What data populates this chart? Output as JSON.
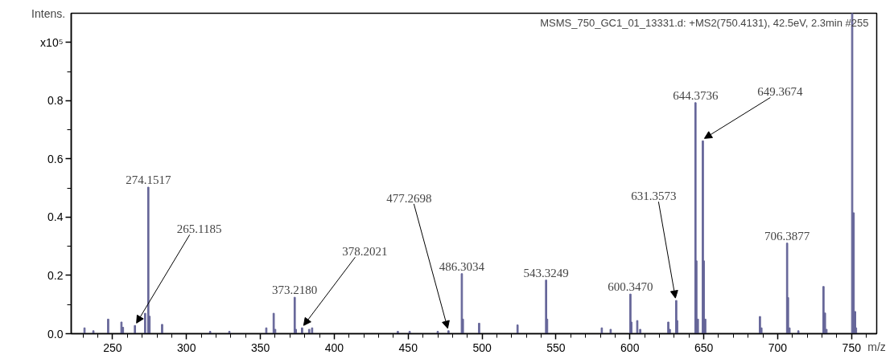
{
  "chart_data": {
    "type": "bar",
    "xlabel": "m/z",
    "ylabel": "Intens.",
    "color": "#666699",
    "x": [
      231,
      237,
      247,
      256,
      257,
      265.1185,
      272,
      274.1517,
      275,
      283.5,
      316,
      329,
      354,
      359,
      360,
      373.218,
      374,
      378.2021,
      383,
      385,
      443,
      451,
      470,
      477.2698,
      486.3034,
      487,
      498,
      524,
      543.3249,
      544,
      581,
      587,
      600.347,
      601,
      605,
      607,
      626,
      627,
      631.3573,
      632,
      644.3736,
      645,
      646,
      649.3674,
      650,
      651,
      688,
      689,
      706.3877,
      707,
      708,
      714,
      731,
      732,
      733,
      750.4131,
      751.4,
      752.4,
      753
    ],
    "values": [
      0.02,
      0.01,
      0.05,
      0.04,
      0.022,
      0.028,
      0.07,
      0.503,
      0.06,
      0.032,
      0.008,
      0.008,
      0.02,
      0.07,
      0.015,
      0.125,
      0.015,
      0.02,
      0.015,
      0.02,
      0.008,
      0.008,
      0.008,
      0.01,
      0.206,
      0.05,
      0.036,
      0.03,
      0.184,
      0.05,
      0.02,
      0.015,
      0.136,
      0.04,
      0.045,
      0.015,
      0.04,
      0.015,
      0.114,
      0.045,
      0.793,
      0.25,
      0.05,
      0.662,
      0.25,
      0.05,
      0.059,
      0.02,
      0.311,
      0.124,
      0.02,
      0.01,
      0.162,
      0.071,
      0.015,
      1.1,
      0.415,
      0.076,
      0.02
    ],
    "xlim": [
      222,
      767
    ],
    "ylim": [
      0,
      1.1
    ],
    "xticks": [
      250,
      300,
      350,
      400,
      450,
      500,
      550,
      600,
      650,
      700,
      750,
      {
        "value": 230,
        "label": null
      },
      {
        "value": 240,
        "label": null
      },
      {
        "value": 260,
        "label": null
      },
      {
        "value": 270,
        "label": null
      },
      {
        "value": 280,
        "label": null
      },
      {
        "value": 290,
        "label": null
      },
      {
        "value": 310,
        "label": null
      },
      {
        "value": 320,
        "label": null
      },
      {
        "value": 330,
        "label": null
      },
      {
        "value": 340,
        "label": null
      },
      {
        "value": 360,
        "label": null
      },
      {
        "value": 370,
        "label": null
      },
      {
        "value": 380,
        "label": null
      },
      {
        "value": 390,
        "label": null
      },
      {
        "value": 410,
        "label": null
      },
      {
        "value": 420,
        "label": null
      },
      {
        "value": 430,
        "label": null
      },
      {
        "value": 440,
        "label": null
      },
      {
        "value": 460,
        "label": null
      },
      {
        "value": 470,
        "label": null
      },
      {
        "value": 480,
        "label": null
      },
      {
        "value": 490,
        "label": null
      },
      {
        "value": 510,
        "label": null
      },
      {
        "value": 520,
        "label": null
      },
      {
        "value": 530,
        "label": null
      },
      {
        "value": 540,
        "label": null
      },
      {
        "value": 560,
        "label": null
      },
      {
        "value": 570,
        "label": null
      },
      {
        "value": 580,
        "label": null
      },
      {
        "value": 590,
        "label": null
      },
      {
        "value": 610,
        "label": null
      },
      {
        "value": 620,
        "label": null
      },
      {
        "value": 630,
        "label": null
      },
      {
        "value": 640,
        "label": null
      },
      {
        "value": 660,
        "label": null
      },
      {
        "value": 670,
        "label": null
      },
      {
        "value": 680,
        "label": null
      },
      {
        "value": 690,
        "label": null
      },
      {
        "value": 710,
        "label": null
      },
      {
        "value": 720,
        "label": null
      },
      {
        "value": 730,
        "label": null
      },
      {
        "value": 740,
        "label": null
      },
      {
        "value": 760,
        "label": null
      }
    ],
    "yticks": [
      {
        "value": 0,
        "label": "0.0"
      },
      0.2,
      0.4,
      0.6,
      0.8,
      {
        "value": 1.0,
        "label": "x10⁵"
      },
      {
        "value": 0.1,
        "label": null
      },
      {
        "value": 0.3,
        "label": null
      },
      {
        "value": 0.5,
        "label": null
      },
      {
        "value": 0.7,
        "label": null
      },
      {
        "value": 0.9,
        "label": null
      }
    ],
    "grid": false,
    "annotations": [
      "MSMS_750_GC1_01_13331.d: +MS2(750.4131), 42.5eV, 2.3min #255",
      {
        "text": "265.1185",
        "x": 265.1185,
        "y": 0.028
      },
      {
        "text": "274.1517",
        "x": 274.1517,
        "y": 0.503
      },
      {
        "text": "373.2180",
        "x": 373.218,
        "y": 0.125
      },
      {
        "text": "378.2021",
        "x": 378.2021,
        "y": 0.02
      },
      {
        "text": "477.2698",
        "x": 477.2698,
        "y": 0.01
      },
      {
        "text": "486.3034",
        "x": 486.3034,
        "y": 0.206
      },
      {
        "text": "543.3249",
        "x": 543.3249,
        "y": 0.184
      },
      {
        "text": "600.3470",
        "x": 600.347,
        "y": 0.136
      },
      {
        "text": "631.3573",
        "x": 631.3573,
        "y": 0.114
      },
      {
        "text": "644.3736",
        "x": 644.3736,
        "y": 0.793
      },
      {
        "text": "649.3674",
        "x": 649.3674,
        "y": 0.662
      },
      {
        "text": "706.3877",
        "x": 706.3877,
        "y": 0.311
      }
    ]
  }
}
